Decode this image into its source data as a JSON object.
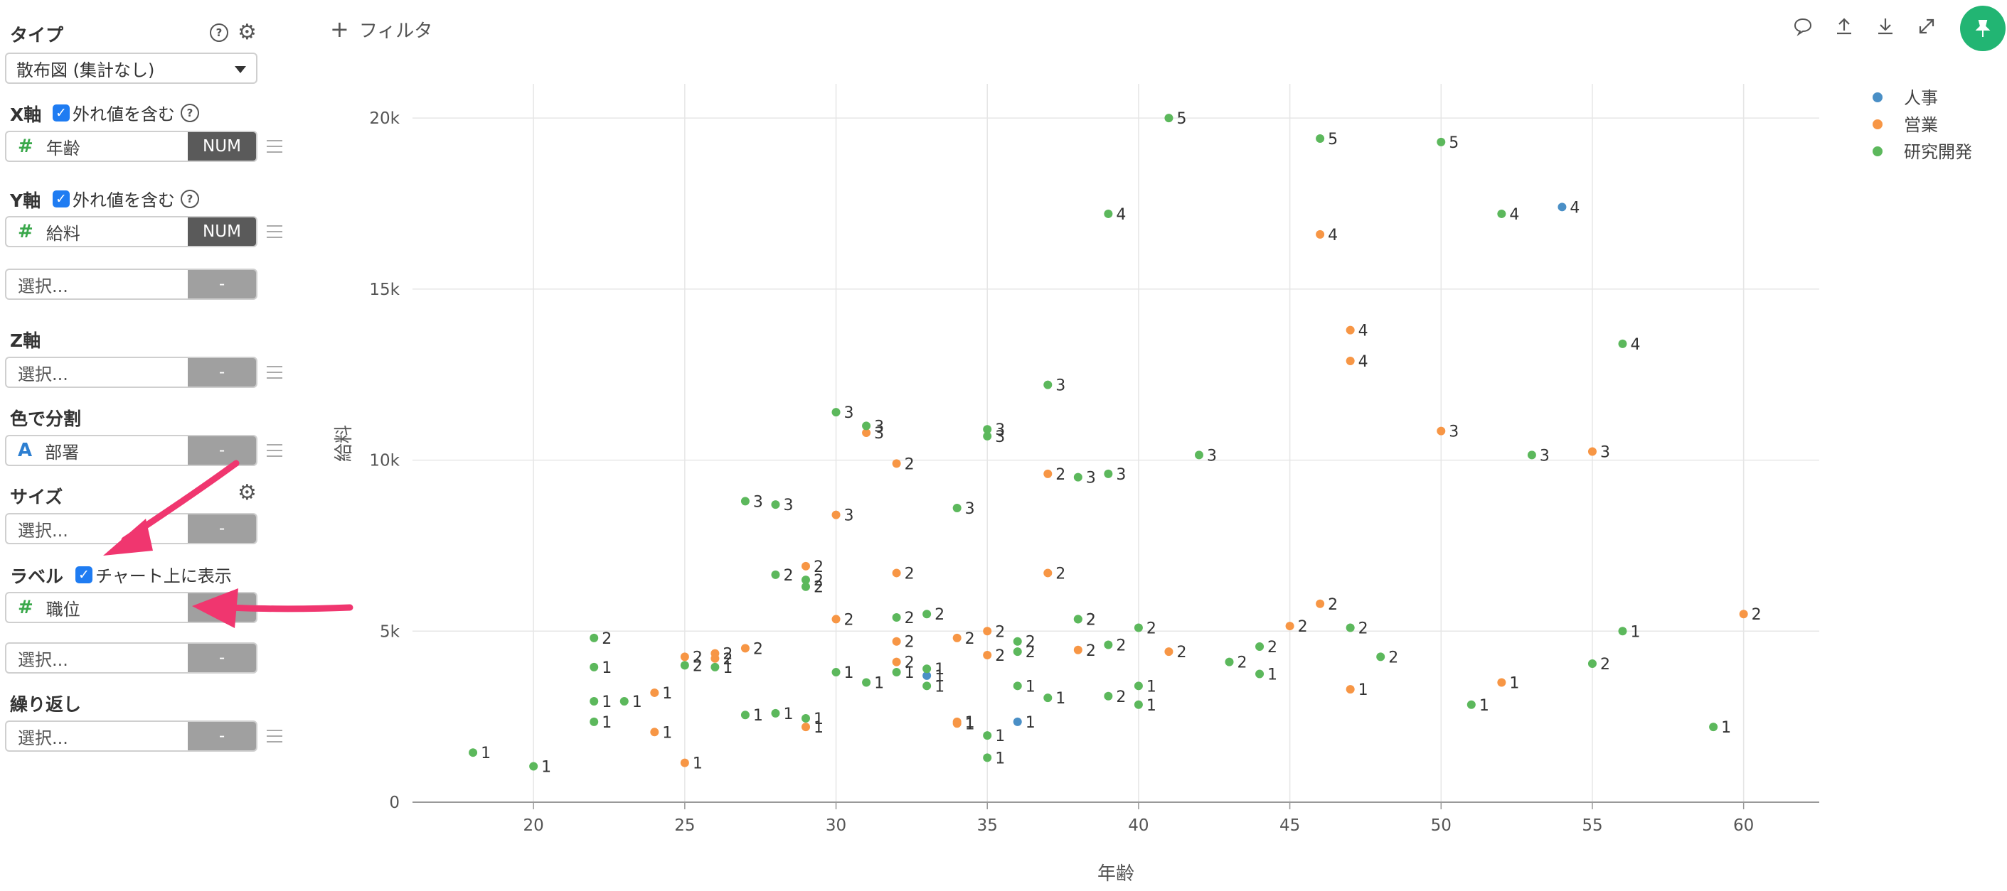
{
  "panel": {
    "type_title": "タイプ",
    "type_value": "散布図 (集計なし)",
    "x_title": "X軸",
    "x_outlier": "外れ値を含む",
    "x_field": "年齢",
    "x_type": "NUM",
    "y_title": "Y軸",
    "y_outlier": "外れ値を含む",
    "y_field": "給料",
    "y_type": "NUM",
    "extra_select": "選択...",
    "extra_type": "-",
    "z_title": "Z軸",
    "z_select": "選択...",
    "z_type": "-",
    "color_title": "色で分割",
    "color_field": "部署",
    "color_type": "-",
    "size_title": "サイズ",
    "size_select": "選択...",
    "size_type": "-",
    "label_title": "ラベル",
    "label_show": "チャート上に表示",
    "label_field": "職位",
    "label_select": "選択...",
    "label_select_type": "-",
    "repeat_title": "繰り返し",
    "repeat_select": "選択...",
    "repeat_type": "-",
    "help_glyph": "?",
    "hash_glyph": "#",
    "text_type_glyph": "A",
    "check_glyph": "✓",
    "gear_glyph": "⚙"
  },
  "toolbar": {
    "filter_label": "フィルタ",
    "plus_glyph": "+",
    "icons": [
      "comment-icon",
      "upload-icon",
      "download-icon",
      "expand-icon",
      "pin-icon"
    ]
  },
  "colors": {
    "人事": "#4a8fc6",
    "営業": "#f79645",
    "研究開発": "#5cb85c",
    "accent_check": "#1f7cf2",
    "arrow": "#f0366f",
    "pin": "#22b573"
  },
  "chart_data": {
    "type": "scatter",
    "xlabel": "年齢",
    "ylabel": "給料",
    "xlim": [
      16,
      62.5
    ],
    "ylim": [
      0,
      21000
    ],
    "xticks": [
      20,
      25,
      30,
      35,
      40,
      45,
      50,
      55,
      60
    ],
    "yticks": [
      0,
      5000,
      10000,
      15000,
      20000
    ],
    "ytick_labels": [
      "0",
      "5k",
      "10k",
      "15k",
      "20k"
    ],
    "grid": true,
    "legend_position": "top-right",
    "series": [
      {
        "name": "人事",
        "points": [
          {
            "x": 54,
            "y": 17400,
            "label": "4"
          },
          {
            "x": 33,
            "y": 3700,
            "label": "1"
          },
          {
            "x": 36,
            "y": 2350,
            "label": "1"
          }
        ]
      },
      {
        "name": "営業",
        "points": [
          {
            "x": 46,
            "y": 16600,
            "label": "4"
          },
          {
            "x": 47,
            "y": 13800,
            "label": "4"
          },
          {
            "x": 47,
            "y": 12900,
            "label": "4"
          },
          {
            "x": 31,
            "y": 10800,
            "label": "3"
          },
          {
            "x": 50,
            "y": 10850,
            "label": "3"
          },
          {
            "x": 55,
            "y": 10250,
            "label": "3"
          },
          {
            "x": 32,
            "y": 9900,
            "label": "2"
          },
          {
            "x": 37,
            "y": 9600,
            "label": "2"
          },
          {
            "x": 30,
            "y": 8400,
            "label": "3"
          },
          {
            "x": 29,
            "y": 6900,
            "label": "2"
          },
          {
            "x": 32,
            "y": 6700,
            "label": "2"
          },
          {
            "x": 37,
            "y": 6700,
            "label": "2"
          },
          {
            "x": 46,
            "y": 5800,
            "label": "2"
          },
          {
            "x": 60,
            "y": 5500,
            "label": "2"
          },
          {
            "x": 30,
            "y": 5350,
            "label": "2"
          },
          {
            "x": 45,
            "y": 5150,
            "label": "2"
          },
          {
            "x": 35,
            "y": 5000,
            "label": "2"
          },
          {
            "x": 34,
            "y": 4800,
            "label": "2"
          },
          {
            "x": 32,
            "y": 4700,
            "label": "2"
          },
          {
            "x": 27,
            "y": 4500,
            "label": "2"
          },
          {
            "x": 38,
            "y": 4450,
            "label": "2"
          },
          {
            "x": 41,
            "y": 4400,
            "label": "2"
          },
          {
            "x": 26,
            "y": 4350,
            "label": "2"
          },
          {
            "x": 35,
            "y": 4300,
            "label": "2"
          },
          {
            "x": 25,
            "y": 4250,
            "label": "2"
          },
          {
            "x": 26,
            "y": 4200,
            "label": "2"
          },
          {
            "x": 32,
            "y": 4100,
            "label": "2"
          },
          {
            "x": 52,
            "y": 3500,
            "label": "1"
          },
          {
            "x": 47,
            "y": 3300,
            "label": "1"
          },
          {
            "x": 24,
            "y": 3200,
            "label": "1"
          },
          {
            "x": 34,
            "y": 2350,
            "label": "1"
          },
          {
            "x": 34,
            "y": 2300,
            "label": "1"
          },
          {
            "x": 29,
            "y": 2200,
            "label": "1"
          },
          {
            "x": 24,
            "y": 2050,
            "label": "1"
          },
          {
            "x": 25,
            "y": 1150,
            "label": "1"
          }
        ]
      },
      {
        "name": "研究開発",
        "points": [
          {
            "x": 41,
            "y": 20000,
            "label": "5"
          },
          {
            "x": 46,
            "y": 19400,
            "label": "5"
          },
          {
            "x": 50,
            "y": 19300,
            "label": "5"
          },
          {
            "x": 39,
            "y": 17200,
            "label": "4"
          },
          {
            "x": 52,
            "y": 17200,
            "label": "4"
          },
          {
            "x": 56,
            "y": 13400,
            "label": "4"
          },
          {
            "x": 37,
            "y": 12200,
            "label": "3"
          },
          {
            "x": 30,
            "y": 11400,
            "label": "3"
          },
          {
            "x": 31,
            "y": 11000,
            "label": "3"
          },
          {
            "x": 35,
            "y": 10900,
            "label": "3"
          },
          {
            "x": 35,
            "y": 10700,
            "label": "3"
          },
          {
            "x": 42,
            "y": 10150,
            "label": "3"
          },
          {
            "x": 53,
            "y": 10150,
            "label": "3"
          },
          {
            "x": 38,
            "y": 9500,
            "label": "3"
          },
          {
            "x": 39,
            "y": 9600,
            "label": "3"
          },
          {
            "x": 27,
            "y": 8800,
            "label": "3"
          },
          {
            "x": 28,
            "y": 8700,
            "label": "3"
          },
          {
            "x": 34,
            "y": 8600,
            "label": "3"
          },
          {
            "x": 28,
            "y": 6650,
            "label": "2"
          },
          {
            "x": 29,
            "y": 6500,
            "label": "2"
          },
          {
            "x": 29,
            "y": 6300,
            "label": "2"
          },
          {
            "x": 38,
            "y": 5350,
            "label": "2"
          },
          {
            "x": 38,
            "y": 5350,
            "label": "2"
          },
          {
            "x": 40,
            "y": 5100,
            "label": "2"
          },
          {
            "x": 47,
            "y": 5100,
            "label": "2"
          },
          {
            "x": 56,
            "y": 5000,
            "label": "1"
          },
          {
            "x": 22,
            "y": 4800,
            "label": "2"
          },
          {
            "x": 33,
            "y": 5500,
            "label": "2"
          },
          {
            "x": 32,
            "y": 5400,
            "label": "2"
          },
          {
            "x": 36,
            "y": 4700,
            "label": "2"
          },
          {
            "x": 39,
            "y": 4600,
            "label": "2"
          },
          {
            "x": 44,
            "y": 4550,
            "label": "2"
          },
          {
            "x": 36,
            "y": 4400,
            "label": "2"
          },
          {
            "x": 48,
            "y": 4250,
            "label": "2"
          },
          {
            "x": 43,
            "y": 4100,
            "label": "2"
          },
          {
            "x": 55,
            "y": 4050,
            "label": "2"
          },
          {
            "x": 25,
            "y": 4000,
            "label": "2"
          },
          {
            "x": 26,
            "y": 3950,
            "label": "1"
          },
          {
            "x": 22,
            "y": 3950,
            "label": "1"
          },
          {
            "x": 33,
            "y": 3900,
            "label": "1"
          },
          {
            "x": 30,
            "y": 3800,
            "label": "1"
          },
          {
            "x": 32,
            "y": 3800,
            "label": "1"
          },
          {
            "x": 44,
            "y": 3750,
            "label": "1"
          },
          {
            "x": 31,
            "y": 3500,
            "label": "1"
          },
          {
            "x": 33,
            "y": 3400,
            "label": "1"
          },
          {
            "x": 36,
            "y": 3400,
            "label": "1"
          },
          {
            "x": 40,
            "y": 3400,
            "label": "1"
          },
          {
            "x": 39,
            "y": 3100,
            "label": "2"
          },
          {
            "x": 37,
            "y": 3050,
            "label": "1"
          },
          {
            "x": 22,
            "y": 2950,
            "label": "1"
          },
          {
            "x": 23,
            "y": 2950,
            "label": "1"
          },
          {
            "x": 51,
            "y": 2850,
            "label": "1"
          },
          {
            "x": 40,
            "y": 2850,
            "label": "1"
          },
          {
            "x": 28,
            "y": 2600,
            "label": "1"
          },
          {
            "x": 27,
            "y": 2550,
            "label": "1"
          },
          {
            "x": 29,
            "y": 2450,
            "label": "1"
          },
          {
            "x": 22,
            "y": 2350,
            "label": "1"
          },
          {
            "x": 59,
            "y": 2200,
            "label": "1"
          },
          {
            "x": 35,
            "y": 1950,
            "label": "1"
          },
          {
            "x": 18,
            "y": 1450,
            "label": "1"
          },
          {
            "x": 35,
            "y": 1300,
            "label": "1"
          },
          {
            "x": 20,
            "y": 1050,
            "label": "1"
          }
        ]
      }
    ]
  }
}
